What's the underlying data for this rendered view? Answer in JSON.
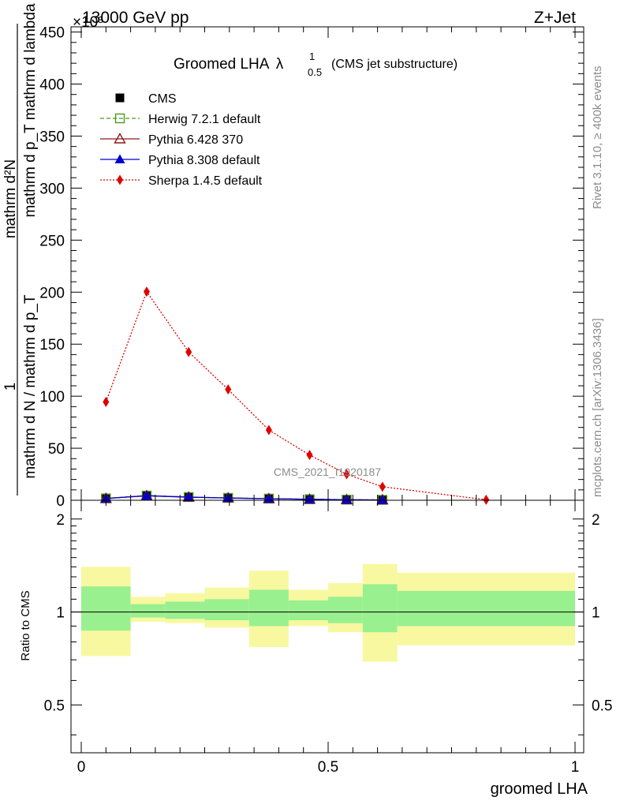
{
  "header": {
    "energy": "13000 GeV pp",
    "process": "Z+Jet",
    "exponent": "×10³"
  },
  "side": {
    "rivet": "Rivet 3.1.10, ≥ 400k events",
    "mcplots": "mcplots.cern.ch [arXiv:1306.3436]"
  },
  "chart_data": {
    "type": "line",
    "title": "Groomed LHA",
    "title_symbol": "λ",
    "title_sup": "1",
    "title_sub": "0.5",
    "subtitle": "(CMS jet substructure)",
    "watermark": "CMS_2021_I1920187",
    "xlabel": "groomed LHA",
    "ylabel_num": "1",
    "ylabel_den": "mathrm d N / mathrm d p_T mathrm d p_T mathrm d lambda",
    "ylabel_top": "mathrm d^2N",
    "ylabel_frac": "mathrm d N / mathrm d p_T",
    "ylabel_parts": [
      "mathrm d²N",
      "mathrm d p_T mathrm d lambda",
      "mathrm d N / mathrm d p_T"
    ],
    "ratio_ylabel": "Ratio to CMS",
    "xlim": [
      0,
      1
    ],
    "ylim": [
      0,
      455
    ],
    "ratio_ylim": [
      0.35,
      2.3
    ],
    "yticks": [
      0,
      50,
      100,
      150,
      200,
      250,
      300,
      350,
      400,
      450
    ],
    "ytick_labels": [
      "0",
      "50",
      "100",
      "150",
      "200",
      "250",
      "300",
      "350",
      "400",
      "450"
    ],
    "xticks": [
      0,
      0.5,
      1
    ],
    "xtick_labels": [
      "0",
      "0.5",
      "1"
    ],
    "ratio_yticks": [
      0.5,
      1,
      2
    ],
    "ratio_ytick_labels": [
      "0.5",
      "1",
      "2"
    ],
    "series": [
      {
        "name": "CMS",
        "color": "#000000",
        "marker": "square-filled",
        "x": [
          0.05,
          0.1325,
          0.2175,
          0.2975,
          0.38,
          0.4625,
          0.5375,
          0.61
        ],
        "y": [
          1.8,
          4.2,
          2.9,
          2.2,
          1.5,
          0.9,
          0.5,
          0.3
        ]
      },
      {
        "name": "Herwig 7.2.1 default",
        "color": "#4a9a1a",
        "marker": "square-open",
        "x": [
          0.05,
          0.1325,
          0.2175,
          0.2975,
          0.38,
          0.4625,
          0.5375,
          0.61
        ],
        "y": [
          1.8,
          4.5,
          3.1,
          2.3,
          1.6,
          1.0,
          0.6,
          0.4
        ]
      },
      {
        "name": "Pythia 6.428 370",
        "color": "#8b1a1a",
        "marker": "triangle-open",
        "x": [
          0.05,
          0.1325,
          0.2175,
          0.2975,
          0.38,
          0.4625,
          0.5375,
          0.61
        ],
        "y": [
          1.7,
          4.3,
          3.0,
          2.2,
          1.5,
          0.9,
          0.5,
          0.3
        ]
      },
      {
        "name": "Pythia 8.308 default",
        "color": "#0000cc",
        "marker": "triangle-filled",
        "x": [
          0.05,
          0.1325,
          0.2175,
          0.2975,
          0.38,
          0.4625,
          0.5375,
          0.61
        ],
        "y": [
          1.7,
          4.4,
          3.0,
          2.2,
          1.5,
          0.9,
          0.5,
          0.3
        ]
      },
      {
        "name": "Sherpa 1.4.5 default",
        "color": "#e00000",
        "marker": "diamond-filled",
        "x": [
          0.05,
          0.1325,
          0.2175,
          0.2975,
          0.38,
          0.4625,
          0.5375,
          0.61,
          0.82
        ],
        "y": [
          94.5,
          200.5,
          142.5,
          106.5,
          67.5,
          43.5,
          25.0,
          13.0,
          0.5
        ]
      }
    ],
    "ratio_bands": [
      {
        "x0": 0.0,
        "x1": 0.1,
        "inner": [
          0.87,
          1.21
        ],
        "outer": [
          0.72,
          1.4
        ]
      },
      {
        "x0": 0.1,
        "x1": 0.17,
        "inner": [
          0.96,
          1.06
        ],
        "outer": [
          0.93,
          1.12
        ]
      },
      {
        "x0": 0.17,
        "x1": 0.25,
        "inner": [
          0.95,
          1.08
        ],
        "outer": [
          0.92,
          1.15
        ]
      },
      {
        "x0": 0.25,
        "x1": 0.34,
        "inner": [
          0.94,
          1.1
        ],
        "outer": [
          0.89,
          1.2
        ]
      },
      {
        "x0": 0.34,
        "x1": 0.42,
        "inner": [
          0.9,
          1.18
        ],
        "outer": [
          0.77,
          1.36
        ]
      },
      {
        "x0": 0.42,
        "x1": 0.5,
        "inner": [
          0.94,
          1.09
        ],
        "outer": [
          0.9,
          1.18
        ]
      },
      {
        "x0": 0.5,
        "x1": 0.57,
        "inner": [
          0.92,
          1.12
        ],
        "outer": [
          0.86,
          1.24
        ]
      },
      {
        "x0": 0.57,
        "x1": 0.64,
        "inner": [
          0.86,
          1.23
        ],
        "outer": [
          0.69,
          1.43
        ]
      },
      {
        "x0": 0.64,
        "x1": 1.0,
        "inner": [
          0.9,
          1.17
        ],
        "outer": [
          0.78,
          1.34
        ]
      }
    ],
    "band_colors": {
      "inner": "#99f08f",
      "outer": "#f8f8a0"
    }
  }
}
